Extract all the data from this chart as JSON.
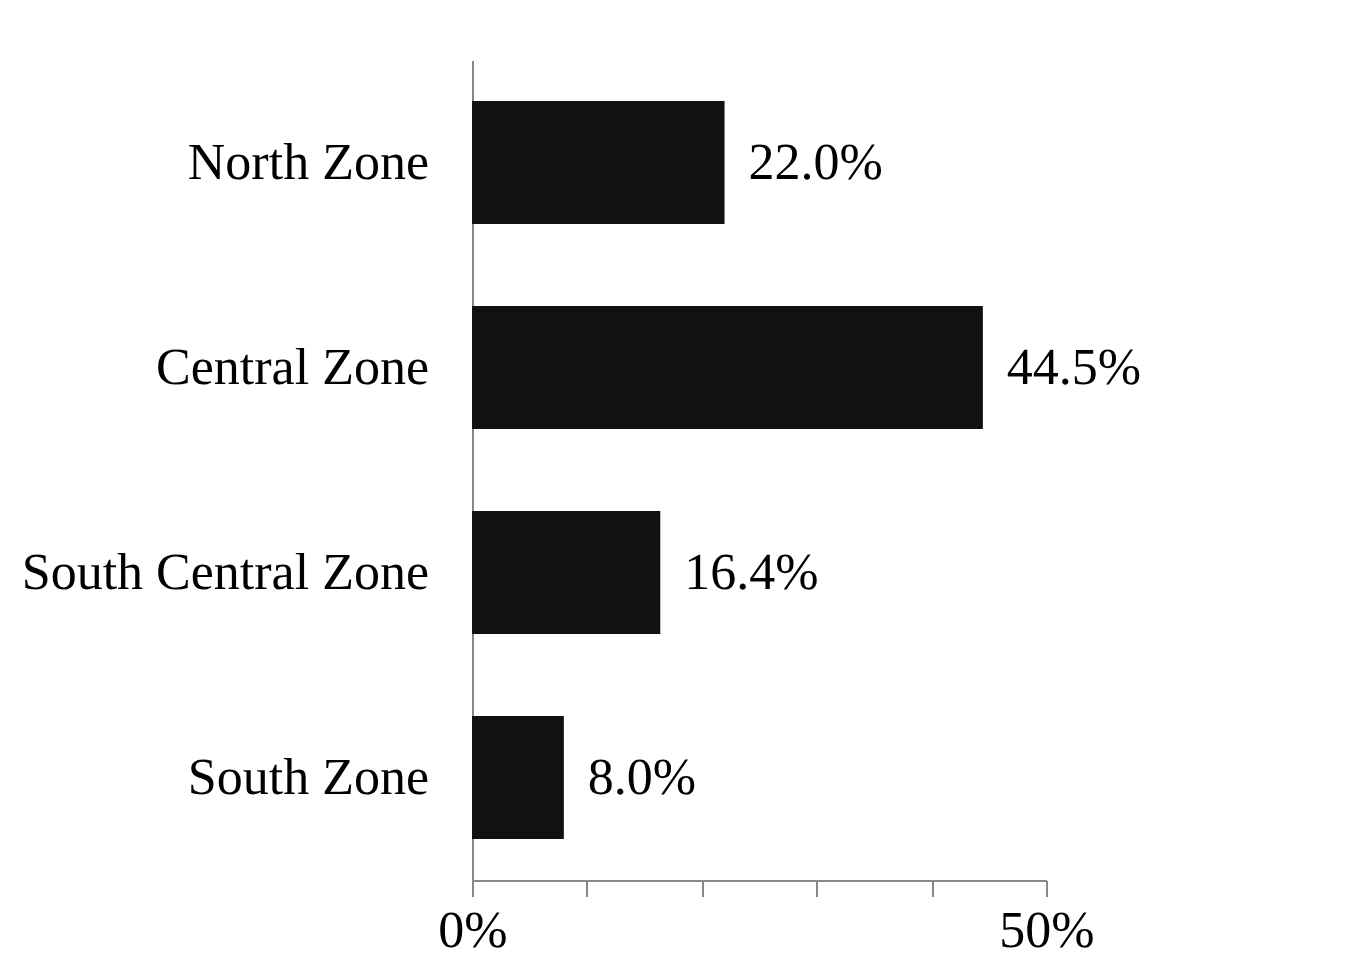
{
  "chart_data": {
    "type": "bar",
    "orientation": "horizontal",
    "categories": [
      "North Zone",
      "Central Zone",
      "South Central Zone",
      "South Zone"
    ],
    "values": [
      22.0,
      44.5,
      16.4,
      8.0
    ],
    "value_labels": [
      "22.0%",
      "44.5%",
      "16.4%",
      "8.0%"
    ],
    "color": "#111111",
    "xlim": [
      0,
      50
    ],
    "xticks": [
      {
        "value": 0,
        "label": "0%"
      },
      {
        "value": 10,
        "label": null
      },
      {
        "value": 20,
        "label": null
      },
      {
        "value": 30,
        "label": null
      },
      {
        "value": 40,
        "label": null
      },
      {
        "value": 50,
        "label": "50%"
      }
    ],
    "grid": false
  }
}
